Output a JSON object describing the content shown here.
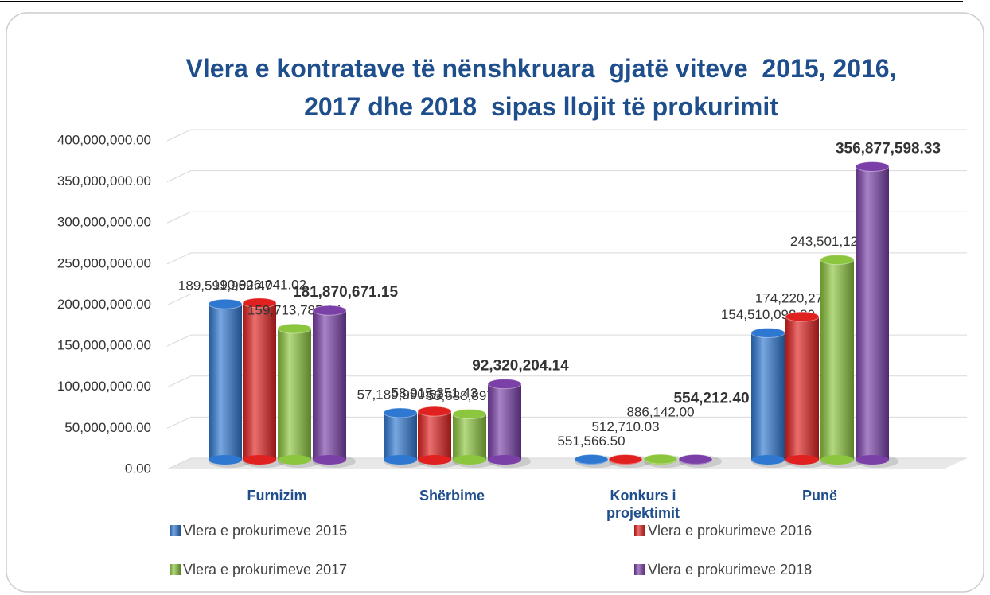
{
  "chart_data": {
    "type": "bar",
    "title": "Vlera e kontratave të nënshkruara  gjatë viteve  2015, 2016, 2017 dhe 2018  sipas llojit të prokurimit",
    "categories": [
      "Furnizim",
      "Shërbime",
      "Konkurs i projektimit",
      "Punë"
    ],
    "series": [
      {
        "name": "Vlera e prokurimeve 2015",
        "color": "#2f78d2",
        "values": [
          189591969.47,
          57189990.53,
          551566.5,
          154510098.8
        ],
        "value_labels": [
          "189,591,969.47",
          "57,189,990.53",
          "551,566.50",
          "154,510,098.80"
        ]
      },
      {
        "name": "Vlera e prokurimeve 2016",
        "color": "#e0211f",
        "values": [
          190926041.02,
          58915351.43,
          512710.03,
          174220276.54
        ],
        "value_labels": [
          "190,926,041.02",
          "58,915,351.43",
          "512,710.03",
          "174,220,276.54"
        ]
      },
      {
        "name": "Vlera e prokurimeve 2017",
        "color": "#8cc63e",
        "values": [
          159713785.04,
          55688897.04,
          886142.0,
          243501121.86
        ],
        "value_labels": [
          "159,713,785.04",
          "55,688,897.04",
          "886,142.00",
          "243,501,121.86"
        ]
      },
      {
        "name": "Vlera e prokurimeve 2018",
        "color": "#7a40a8",
        "values": [
          181870671.15,
          92320204.14,
          554212.4,
          356877598.33
        ],
        "value_labels": [
          "181,870,671.15",
          "92,320,204.14",
          "554,212.40",
          "356,877,598.33"
        ]
      }
    ],
    "ylim": [
      0,
      400000000
    ],
    "yticks": [
      {
        "value": 0,
        "label": "0.00"
      },
      {
        "value": 50000000,
        "label": "50,000,000.00"
      },
      {
        "value": 100000000,
        "label": "100,000,000.00"
      },
      {
        "value": 150000000,
        "label": "150,000,000.00"
      },
      {
        "value": 200000000,
        "label": "200,000,000.00"
      },
      {
        "value": 250000000,
        "label": "250,000,000.00"
      },
      {
        "value": 300000000,
        "label": "300,000,000.00"
      },
      {
        "value": 350000000,
        "label": "350,000,000.00"
      },
      {
        "value": 400000000,
        "label": "400,000,000.00"
      }
    ],
    "grid": true,
    "legend": "bottom"
  }
}
